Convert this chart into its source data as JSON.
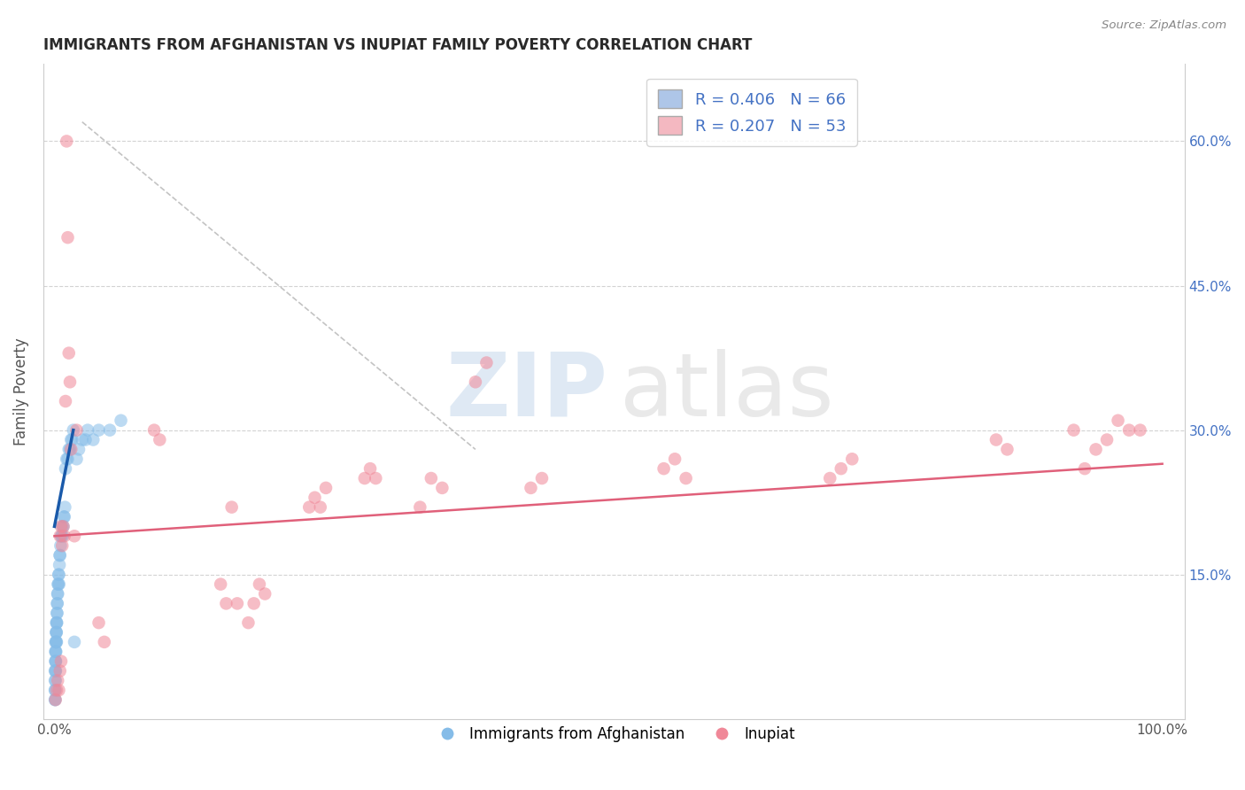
{
  "title": "IMMIGRANTS FROM AFGHANISTAN VS INUPIAT FAMILY POVERTY CORRELATION CHART",
  "source_text": "Source: ZipAtlas.com",
  "ylabel": "Family Poverty",
  "xlabel": "",
  "x_tick_labels": [
    "0.0%",
    "100.0%"
  ],
  "y_tick_labels": [
    "15.0%",
    "30.0%",
    "45.0%",
    "60.0%"
  ],
  "y_tick_values": [
    0.15,
    0.3,
    0.45,
    0.6
  ],
  "x_tick_values": [
    0.0,
    1.0
  ],
  "xlim": [
    -0.01,
    1.02
  ],
  "ylim": [
    0.0,
    0.68
  ],
  "blue_color": "#85bce8",
  "pink_color": "#f08898",
  "blue_line_color": "#1a5aaa",
  "pink_line_color": "#e0607a",
  "bg_color": "#ffffff",
  "grid_color": "#c8c8c8",
  "title_color": "#2a2a2a",
  "blue_scatter": [
    [
      0.0005,
      0.02
    ],
    [
      0.0005,
      0.03
    ],
    [
      0.0005,
      0.04
    ],
    [
      0.0005,
      0.05
    ],
    [
      0.0007,
      0.02
    ],
    [
      0.0007,
      0.03
    ],
    [
      0.0008,
      0.06
    ],
    [
      0.0008,
      0.07
    ],
    [
      0.0009,
      0.05
    ],
    [
      0.001,
      0.04
    ],
    [
      0.001,
      0.06
    ],
    [
      0.001,
      0.08
    ],
    [
      0.0012,
      0.05
    ],
    [
      0.0012,
      0.07
    ],
    [
      0.0013,
      0.06
    ],
    [
      0.0014,
      0.07
    ],
    [
      0.0015,
      0.08
    ],
    [
      0.0015,
      0.09
    ],
    [
      0.0016,
      0.08
    ],
    [
      0.0017,
      0.09
    ],
    [
      0.0018,
      0.1
    ],
    [
      0.0019,
      0.09
    ],
    [
      0.002,
      0.08
    ],
    [
      0.002,
      0.1
    ],
    [
      0.0022,
      0.1
    ],
    [
      0.0023,
      0.11
    ],
    [
      0.0024,
      0.11
    ],
    [
      0.0025,
      0.12
    ],
    [
      0.0026,
      0.12
    ],
    [
      0.0028,
      0.13
    ],
    [
      0.003,
      0.13
    ],
    [
      0.0032,
      0.14
    ],
    [
      0.0035,
      0.14
    ],
    [
      0.0038,
      0.15
    ],
    [
      0.004,
      0.15
    ],
    [
      0.0042,
      0.14
    ],
    [
      0.0045,
      0.16
    ],
    [
      0.0048,
      0.17
    ],
    [
      0.005,
      0.17
    ],
    [
      0.0055,
      0.18
    ],
    [
      0.006,
      0.19
    ],
    [
      0.0065,
      0.19
    ],
    [
      0.007,
      0.2
    ],
    [
      0.0075,
      0.19
    ],
    [
      0.008,
      0.2
    ],
    [
      0.0085,
      0.21
    ],
    [
      0.009,
      0.21
    ],
    [
      0.0095,
      0.22
    ],
    [
      0.01,
      0.26
    ],
    [
      0.011,
      0.27
    ],
    [
      0.012,
      0.27
    ],
    [
      0.013,
      0.28
    ],
    [
      0.014,
      0.28
    ],
    [
      0.015,
      0.29
    ],
    [
      0.016,
      0.29
    ],
    [
      0.017,
      0.3
    ],
    [
      0.018,
      0.08
    ],
    [
      0.02,
      0.27
    ],
    [
      0.022,
      0.28
    ],
    [
      0.025,
      0.29
    ],
    [
      0.028,
      0.29
    ],
    [
      0.03,
      0.3
    ],
    [
      0.035,
      0.29
    ],
    [
      0.04,
      0.3
    ],
    [
      0.05,
      0.3
    ],
    [
      0.06,
      0.31
    ]
  ],
  "pink_scatter": [
    [
      0.001,
      0.02
    ],
    [
      0.002,
      0.03
    ],
    [
      0.003,
      0.04
    ],
    [
      0.004,
      0.03
    ],
    [
      0.005,
      0.05
    ],
    [
      0.005,
      0.19
    ],
    [
      0.006,
      0.06
    ],
    [
      0.006,
      0.2
    ],
    [
      0.007,
      0.18
    ],
    [
      0.008,
      0.2
    ],
    [
      0.009,
      0.19
    ],
    [
      0.01,
      0.33
    ],
    [
      0.011,
      0.6
    ],
    [
      0.012,
      0.5
    ],
    [
      0.013,
      0.38
    ],
    [
      0.014,
      0.35
    ],
    [
      0.015,
      0.28
    ],
    [
      0.018,
      0.19
    ],
    [
      0.02,
      0.3
    ],
    [
      0.04,
      0.1
    ],
    [
      0.045,
      0.08
    ],
    [
      0.09,
      0.3
    ],
    [
      0.095,
      0.29
    ],
    [
      0.15,
      0.14
    ],
    [
      0.155,
      0.12
    ],
    [
      0.16,
      0.22
    ],
    [
      0.165,
      0.12
    ],
    [
      0.175,
      0.1
    ],
    [
      0.18,
      0.12
    ],
    [
      0.185,
      0.14
    ],
    [
      0.19,
      0.13
    ],
    [
      0.23,
      0.22
    ],
    [
      0.235,
      0.23
    ],
    [
      0.24,
      0.22
    ],
    [
      0.245,
      0.24
    ],
    [
      0.28,
      0.25
    ],
    [
      0.285,
      0.26
    ],
    [
      0.29,
      0.25
    ],
    [
      0.33,
      0.22
    ],
    [
      0.34,
      0.25
    ],
    [
      0.35,
      0.24
    ],
    [
      0.38,
      0.35
    ],
    [
      0.39,
      0.37
    ],
    [
      0.43,
      0.24
    ],
    [
      0.44,
      0.25
    ],
    [
      0.55,
      0.26
    ],
    [
      0.56,
      0.27
    ],
    [
      0.57,
      0.25
    ],
    [
      0.7,
      0.25
    ],
    [
      0.71,
      0.26
    ],
    [
      0.72,
      0.27
    ],
    [
      0.85,
      0.29
    ],
    [
      0.86,
      0.28
    ],
    [
      0.92,
      0.3
    ],
    [
      0.93,
      0.26
    ],
    [
      0.94,
      0.28
    ],
    [
      0.95,
      0.29
    ],
    [
      0.96,
      0.31
    ],
    [
      0.97,
      0.3
    ],
    [
      0.98,
      0.3
    ]
  ],
  "blue_line_x": [
    0.0,
    0.017
  ],
  "blue_line_y": [
    0.2,
    0.3
  ],
  "pink_line_x": [
    0.0,
    1.0
  ],
  "pink_line_y": [
    0.19,
    0.265
  ],
  "diag_line_x": [
    0.025,
    0.38
  ],
  "diag_line_y": [
    0.62,
    0.28
  ]
}
